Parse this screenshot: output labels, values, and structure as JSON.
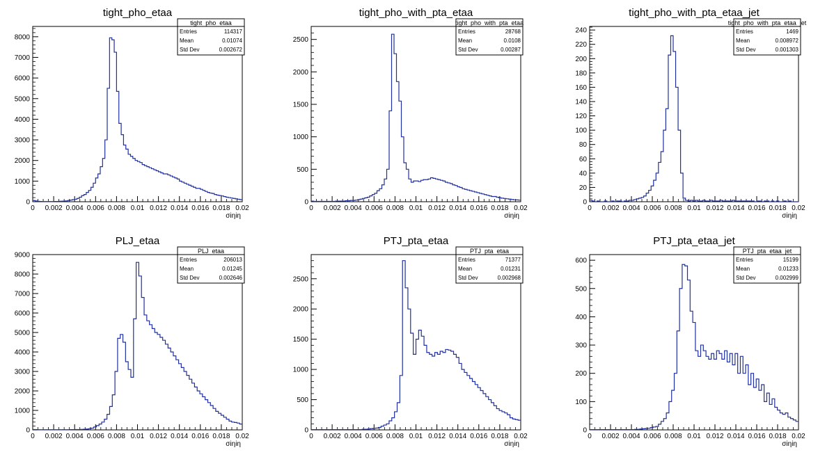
{
  "chart_data": [
    {
      "type": "histogram",
      "title": "tight_pho_etaa",
      "xlabel": "σiηiη",
      "xlim": [
        0,
        0.02
      ],
      "ylim": [
        0,
        8500
      ],
      "xticks": [
        "0",
        "0.002",
        "0.004",
        "0.006",
        "0.008",
        "0.01",
        "0.012",
        "0.014",
        "0.016",
        "0.018",
        "0.02"
      ],
      "yticks": [
        0,
        1000,
        2000,
        3000,
        4000,
        5000,
        6000,
        7000,
        8000
      ],
      "stats": {
        "name": "tight_pho_etaa",
        "rows": [
          {
            "label": "Entries",
            "value": "114317"
          },
          {
            "label": "Mean",
            "value": "0.01074"
          },
          {
            "label": "Std Dev",
            "value": "0.002672"
          }
        ]
      },
      "values": [
        60,
        40,
        20,
        15,
        10,
        10,
        10,
        10,
        10,
        15,
        15,
        20,
        25,
        30,
        40,
        60,
        80,
        100,
        120,
        160,
        220,
        300,
        350,
        450,
        550,
        700,
        900,
        1150,
        1350,
        1700,
        2100,
        3000,
        5500,
        7950,
        7850,
        7250,
        5350,
        3800,
        3250,
        2750,
        2550,
        2300,
        2200,
        2100,
        2000,
        1950,
        1900,
        1800,
        1750,
        1700,
        1650,
        1600,
        1550,
        1500,
        1450,
        1400,
        1350,
        1350,
        1300,
        1250,
        1200,
        1150,
        1100,
        1000,
        950,
        900,
        850,
        800,
        750,
        700,
        650,
        650,
        600,
        550,
        500,
        450,
        420,
        400,
        350,
        320,
        300,
        280,
        250,
        220,
        200,
        180,
        160,
        140,
        120,
        100
      ]
    },
    {
      "type": "histogram",
      "title": "tight_pho_with_pta_etaa",
      "xlabel": "σiηiη",
      "xlim": [
        0,
        0.02
      ],
      "ylim": [
        0,
        2700
      ],
      "xticks": [
        "0",
        "0.002",
        "0.004",
        "0.006",
        "0.008",
        "0.01",
        "0.012",
        "0.014",
        "0.016",
        "0.018",
        "0.02"
      ],
      "yticks": [
        0,
        500,
        1000,
        1500,
        2000,
        2500
      ],
      "stats": {
        "name": "tight_pho_with_pta_etaa",
        "rows": [
          {
            "label": "Entries",
            "value": "28768"
          },
          {
            "label": "Mean",
            "value": "0.0108"
          },
          {
            "label": "Std Dev",
            "value": "0.00287"
          }
        ]
      },
      "values": [
        10,
        5,
        5,
        5,
        5,
        5,
        5,
        5,
        5,
        5,
        10,
        10,
        10,
        10,
        15,
        15,
        20,
        20,
        25,
        30,
        40,
        50,
        60,
        70,
        90,
        110,
        130,
        170,
        200,
        260,
        350,
        500,
        1400,
        2580,
        2280,
        1850,
        1550,
        1000,
        600,
        500,
        350,
        300,
        320,
        320,
        310,
        330,
        340,
        340,
        350,
        370,
        360,
        350,
        340,
        330,
        320,
        300,
        290,
        280,
        260,
        250,
        230,
        220,
        200,
        190,
        180,
        170,
        160,
        150,
        140,
        130,
        120,
        110,
        100,
        90,
        80,
        80,
        70,
        60,
        55,
        50,
        45,
        40,
        35,
        30,
        28,
        25
      ]
    },
    {
      "type": "histogram",
      "title": "tight_pho_with_pta_etaa_jet",
      "xlabel": "σiηiη",
      "xlim": [
        0,
        0.02
      ],
      "ylim": [
        0,
        245
      ],
      "xticks": [
        "0",
        "0.002",
        "0.004",
        "0.006",
        "0.008",
        "0.01",
        "0.012",
        "0.014",
        "0.016",
        "0.018",
        "0.02"
      ],
      "yticks": [
        0,
        20,
        40,
        60,
        80,
        100,
        120,
        140,
        160,
        180,
        200,
        220,
        240
      ],
      "stats": {
        "name": "tight_pho_with_pta_etaa_jet",
        "rows": [
          {
            "label": "Entries",
            "value": "1469"
          },
          {
            "label": "Mean",
            "value": "0.008972"
          },
          {
            "label": "Std Dev",
            "value": "0.001303"
          }
        ]
      },
      "values": [
        2,
        1,
        0,
        1,
        0,
        0,
        1,
        0,
        0,
        1,
        0,
        1,
        1,
        0,
        1,
        1,
        2,
        2,
        3,
        4,
        5,
        6,
        8,
        12,
        16,
        22,
        30,
        40,
        55,
        70,
        100,
        130,
        205,
        232,
        210,
        160,
        100,
        40,
        5,
        2,
        1,
        2,
        1,
        2,
        1,
        1,
        2,
        1,
        1,
        2,
        1,
        1,
        1,
        2,
        1,
        1,
        1,
        1,
        2,
        1,
        1,
        1,
        1,
        1,
        1,
        1,
        1,
        0,
        1,
        1,
        0,
        1,
        1,
        0,
        1,
        0,
        1,
        0,
        0,
        1,
        0,
        1,
        0,
        0,
        0
      ]
    },
    {
      "type": "histogram",
      "title": "PLJ_etaa",
      "xlabel": "σiηiη",
      "xlim": [
        0,
        0.02
      ],
      "ylim": [
        0,
        9000
      ],
      "xticks": [
        "0",
        "0.002",
        "0.004",
        "0.006",
        "0.008",
        "0.01",
        "0.012",
        "0.014",
        "0.016",
        "0.018",
        "0.02"
      ],
      "yticks": [
        0,
        1000,
        2000,
        3000,
        4000,
        5000,
        6000,
        7000,
        8000,
        9000
      ],
      "stats": {
        "name": "PLJ_etaa",
        "rows": [
          {
            "label": "Entries",
            "value": "206013"
          },
          {
            "label": "Mean",
            "value": "0.01245"
          },
          {
            "label": "Std Dev",
            "value": "0.002646"
          }
        ]
      },
      "values": [
        20,
        15,
        10,
        10,
        10,
        10,
        10,
        10,
        10,
        10,
        10,
        10,
        10,
        10,
        15,
        15,
        20,
        20,
        25,
        30,
        40,
        60,
        90,
        150,
        220,
        300,
        400,
        550,
        800,
        1200,
        1800,
        3000,
        4700,
        4900,
        4500,
        3500,
        3100,
        2700,
        5700,
        8600,
        7900,
        6800,
        5900,
        5600,
        5400,
        5200,
        5000,
        4900,
        4750,
        4600,
        4400,
        4200,
        4000,
        3800,
        3600,
        3400,
        3200,
        3000,
        2800,
        2600,
        2400,
        2200,
        2000,
        1850,
        1700,
        1550,
        1400,
        1250,
        1100,
        950,
        850,
        750,
        650,
        550,
        450,
        400,
        380,
        350,
        300
      ]
    },
    {
      "type": "histogram",
      "title": "PTJ_pta_etaa",
      "xlabel": "σiηiη",
      "xlim": [
        0,
        0.02
      ],
      "ylim": [
        0,
        2900
      ],
      "xticks": [
        "0",
        "0.002",
        "0.004",
        "0.006",
        "0.008",
        "0.01",
        "0.012",
        "0.014",
        "0.016",
        "0.018",
        "0.02"
      ],
      "yticks": [
        0,
        500,
        1000,
        1500,
        2000,
        2500
      ],
      "stats": {
        "name": "PTJ_pta_etaa",
        "rows": [
          {
            "label": "Entries",
            "value": "71377"
          },
          {
            "label": "Mean",
            "value": "0.01231"
          },
          {
            "label": "Std Dev",
            "value": "0.002968"
          }
        ]
      },
      "values": [
        5,
        5,
        5,
        5,
        5,
        5,
        5,
        5,
        5,
        5,
        5,
        5,
        5,
        5,
        5,
        5,
        5,
        5,
        5,
        10,
        10,
        15,
        20,
        25,
        30,
        40,
        60,
        80,
        100,
        150,
        200,
        300,
        450,
        900,
        2800,
        2350,
        2000,
        1600,
        1250,
        1500,
        1650,
        1550,
        1400,
        1280,
        1250,
        1220,
        1280,
        1250,
        1300,
        1280,
        1330,
        1320,
        1300,
        1250,
        1200,
        1100,
        1000,
        950,
        900,
        850,
        800,
        750,
        700,
        650,
        600,
        550,
        500,
        450,
        400,
        350,
        320,
        300,
        280,
        250,
        200,
        180,
        170,
        160
      ]
    },
    {
      "type": "histogram",
      "title": "PTJ_pta_etaa_jet",
      "xlabel": "σiηiη",
      "xlim": [
        0,
        0.02
      ],
      "ylim": [
        0,
        620
      ],
      "xticks": [
        "0",
        "0.002",
        "0.004",
        "0.006",
        "0.008",
        "0.01",
        "0.012",
        "0.014",
        "0.016",
        "0.018",
        "0.02"
      ],
      "yticks": [
        0,
        100,
        200,
        300,
        400,
        500,
        600
      ],
      "stats": {
        "name": "PTJ_pta_etaa_jet",
        "rows": [
          {
            "label": "Entries",
            "value": "15199"
          },
          {
            "label": "Mean",
            "value": "0.01233"
          },
          {
            "label": "Std Dev",
            "value": "0.002999"
          }
        ]
      },
      "values": [
        1,
        1,
        1,
        1,
        1,
        1,
        1,
        1,
        1,
        1,
        1,
        1,
        1,
        1,
        1,
        1,
        1,
        2,
        2,
        3,
        4,
        5,
        6,
        8,
        10,
        12,
        20,
        30,
        40,
        60,
        100,
        140,
        200,
        350,
        500,
        585,
        580,
        530,
        420,
        380,
        280,
        260,
        300,
        280,
        260,
        250,
        270,
        250,
        280,
        270,
        250,
        280,
        240,
        270,
        230,
        270,
        200,
        260,
        200,
        230,
        160,
        200,
        150,
        180,
        140,
        160,
        100,
        130,
        90,
        110,
        80,
        70,
        60,
        55,
        60,
        45,
        40,
        35,
        30
      ]
    }
  ]
}
